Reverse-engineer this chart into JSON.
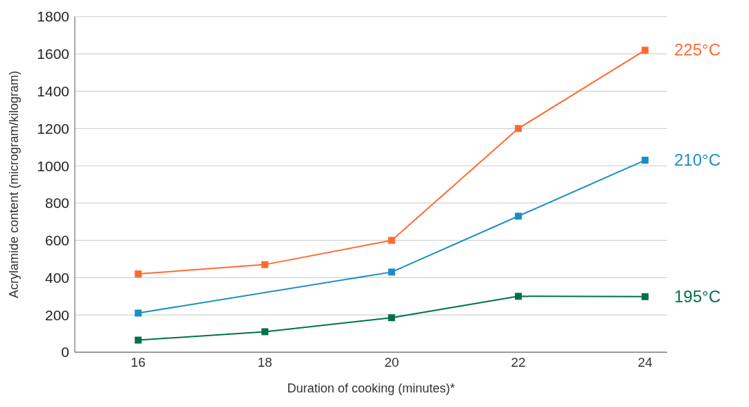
{
  "chart_data": {
    "type": "line",
    "xlabel": "Duration of cooking (minutes)*",
    "ylabel": "Acrylamide content (microgram/kilogram)",
    "x": [
      16,
      18,
      20,
      22,
      24
    ],
    "series": [
      {
        "name": "225°C",
        "color": "#ff6a33",
        "values": [
          420,
          470,
          600,
          1200,
          1620
        ]
      },
      {
        "name": "210°C",
        "color": "#1b8fc2",
        "values": [
          210,
          null,
          430,
          730,
          1030
        ]
      },
      {
        "name": "195°C",
        "color": "#00704f",
        "values": [
          65,
          110,
          185,
          300,
          298
        ]
      }
    ],
    "xlim": [
      15,
      24.35
    ],
    "xticks": [
      16,
      18,
      20,
      22,
      24
    ],
    "ylim": [
      0,
      1800
    ],
    "yticks": [
      0,
      200,
      400,
      600,
      800,
      1000,
      1200,
      1400,
      1600,
      1800
    ],
    "grid": "y",
    "legend": false,
    "marker": "square",
    "line_style": "solid"
  }
}
